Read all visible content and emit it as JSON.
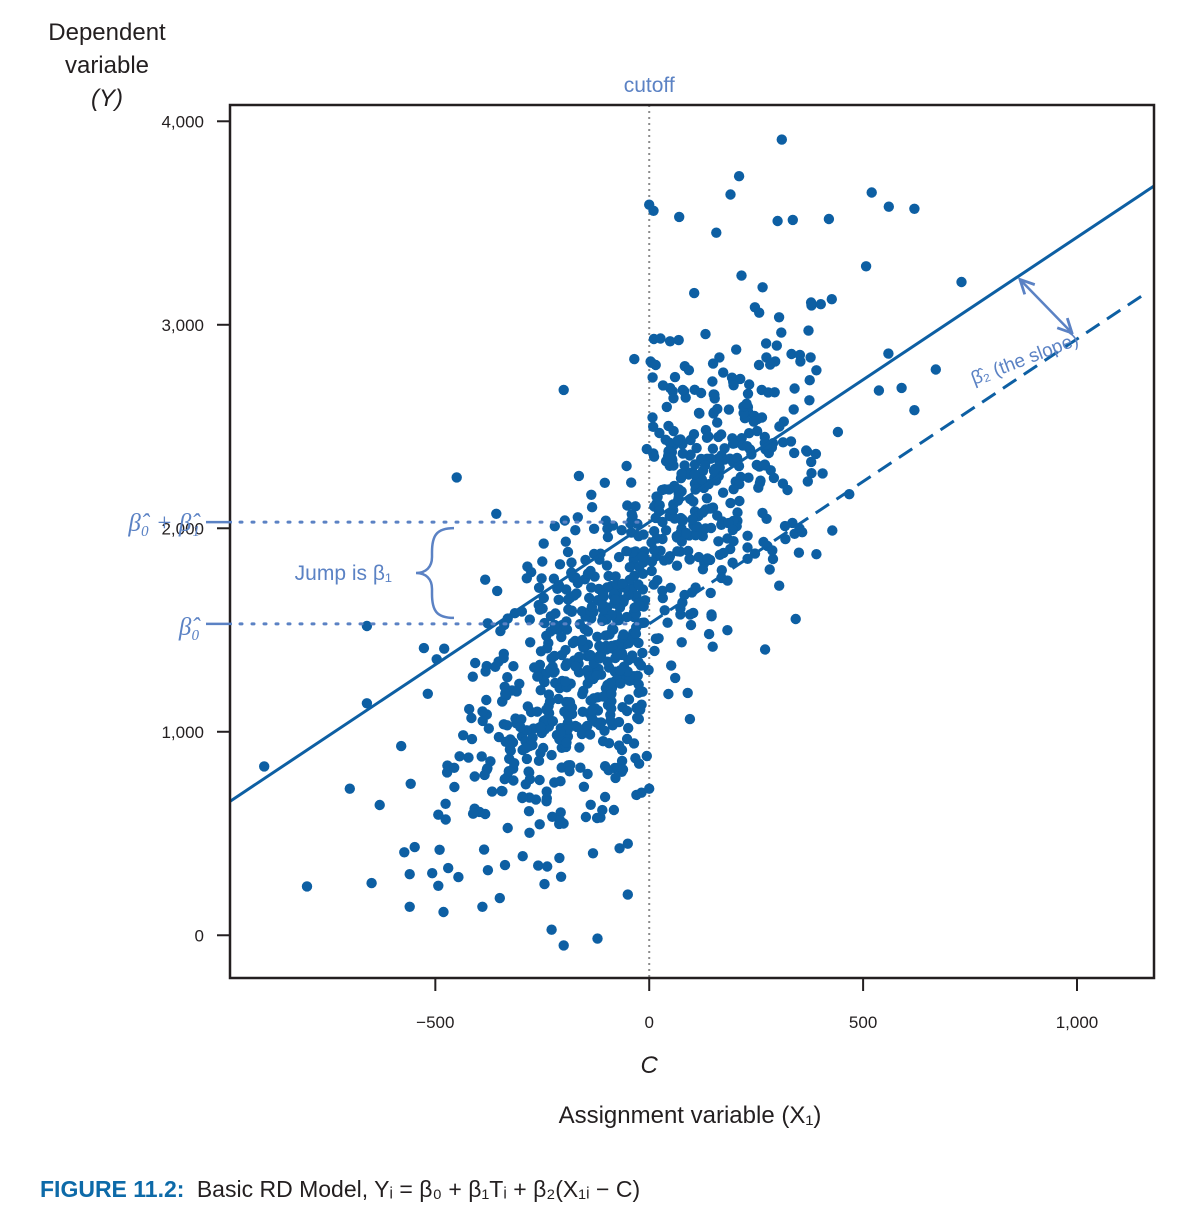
{
  "chart_data": {
    "type": "scatter",
    "title": "",
    "ylabel": [
      "Dependent",
      "variable",
      "(Y)"
    ],
    "xlabel": "Assignment variable (X₁)",
    "cutoff_label": "cutoff",
    "cutoff_x_label": "C",
    "xlim": [
      -980,
      1180
    ],
    "ylim": [
      -210,
      4080
    ],
    "x_ticks": [
      -500,
      0,
      500,
      1000
    ],
    "x_tick_labels": [
      "−500",
      "0",
      "500",
      "1,000"
    ],
    "y_ticks": [
      0,
      1000,
      2000,
      3000,
      4000
    ],
    "y_tick_labels": [
      "0",
      "1,000",
      "2,000",
      "3,000",
      "4,000"
    ],
    "grid": false,
    "cutoff": 0,
    "fit_line": {
      "beta0": 1530,
      "beta1": 500,
      "beta2": 1.4
    },
    "annotations": {
      "jump": "Jump is β₁",
      "beta0": "β̂₀",
      "beta0_plus_beta1": "β̂₀ + β̂₁",
      "slope": "β̂₂ (the slope)"
    },
    "n_points": 900,
    "point_seed": 11,
    "outlier_points": [
      {
        "x": -900,
        "y": 830
      },
      {
        "x": -800,
        "y": 240
      },
      {
        "x": -700,
        "y": 720
      },
      {
        "x": -660,
        "y": 1520
      },
      {
        "x": -660,
        "y": 1140
      },
      {
        "x": -630,
        "y": 640
      },
      {
        "x": -560,
        "y": 300
      },
      {
        "x": -490,
        "y": 420
      },
      {
        "x": -470,
        "y": 330
      },
      {
        "x": -450,
        "y": 2250
      },
      {
        "x": -390,
        "y": 140
      },
      {
        "x": -200,
        "y": -50
      },
      {
        "x": -200,
        "y": 2680
      },
      {
        "x": -50,
        "y": 200
      },
      {
        "x": -50,
        "y": 450
      },
      {
        "x": -30,
        "y": 690
      },
      {
        "x": 0,
        "y": 720
      },
      {
        "x": 0,
        "y": 3590
      },
      {
        "x": 10,
        "y": 3560
      },
      {
        "x": 70,
        "y": 3530
      },
      {
        "x": 190,
        "y": 3640
      },
      {
        "x": 210,
        "y": 3730
      },
      {
        "x": 300,
        "y": 3510
      },
      {
        "x": 310,
        "y": 3910
      },
      {
        "x": 420,
        "y": 3520
      },
      {
        "x": 520,
        "y": 3650
      },
      {
        "x": 560,
        "y": 3580
      },
      {
        "x": 620,
        "y": 3570
      },
      {
        "x": 590,
        "y": 2690
      },
      {
        "x": 620,
        "y": 2580
      },
      {
        "x": 670,
        "y": 2780
      },
      {
        "x": 730,
        "y": 3210
      },
      {
        "x": 350,
        "y": 1880
      },
      {
        "x": 230,
        "y": 1850
      },
      {
        "x": 140,
        "y": 1480
      },
      {
        "x": -210,
        "y": 380
      }
    ]
  },
  "figure": {
    "number": "FIGURE 11.2:",
    "caption": "Basic RD Model, Yᵢ = β₀ + β₁Tᵢ + β₂(X₁ᵢ − C)"
  },
  "colors": {
    "points": "#0d5fa3",
    "fit_line": "#0d5fa3",
    "annotation": "#5b82c4",
    "axis": "#231f20",
    "caption_number": "#0d6aa8"
  }
}
